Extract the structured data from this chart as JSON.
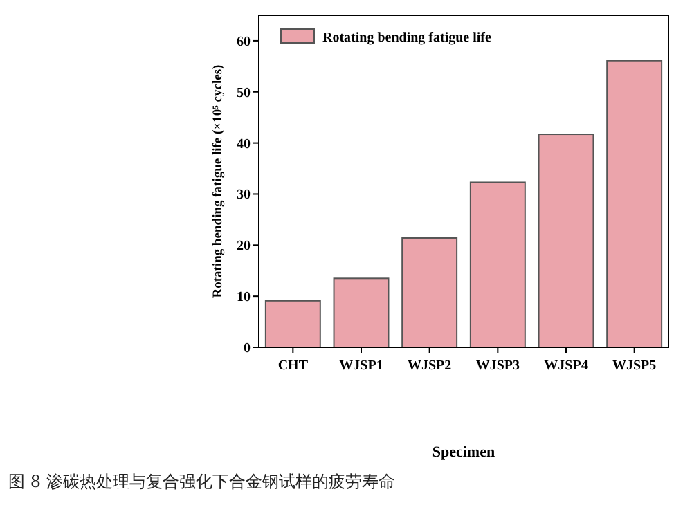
{
  "chart_data": {
    "type": "bar",
    "xlabel": "Specimen",
    "ylabel": "Rotating bending fatigue life (×10⁵ cycles)",
    "categories": [
      "CHT",
      "WJSP1",
      "WJSP2",
      "WJSP3",
      "WJSP4",
      "WJSP5"
    ],
    "series": [
      {
        "name": "Rotating bending fatigue life",
        "color": "#eba4ab",
        "values": [
          9.1,
          13.5,
          21.4,
          32.3,
          41.7,
          56.1
        ]
      }
    ],
    "ylim": [
      0,
      65
    ],
    "yticks": [
      0,
      10,
      20,
      30,
      40,
      50,
      60
    ],
    "legend": "top left",
    "grid": false,
    "annotations": [
      "图 8  渗碳热处理与复合强化下合金钢试样的疲劳寿命"
    ]
  }
}
